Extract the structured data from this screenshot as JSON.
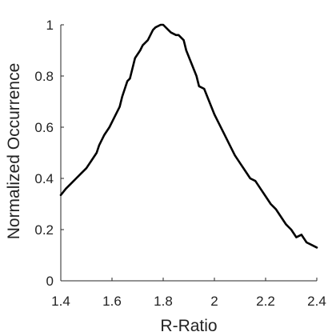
{
  "chart_data": {
    "type": "line",
    "title": "",
    "xlabel": "R-Ratio",
    "ylabel": "Normalized Occurrence",
    "xlim": [
      1.4,
      2.4
    ],
    "ylim": [
      0,
      1
    ],
    "xticks": [
      "1.4",
      "1.6",
      "1.8",
      "2",
      "2.2",
      "2.4"
    ],
    "yticks": [
      "0",
      "0.2",
      "0.4",
      "0.6",
      "0.8",
      "1"
    ],
    "grid": false,
    "line_color": "#000000",
    "series": [
      {
        "x": [
          1.4,
          1.42,
          1.44,
          1.46,
          1.48,
          1.5,
          1.52,
          1.54,
          1.55,
          1.57,
          1.59,
          1.61,
          1.63,
          1.64,
          1.66,
          1.67,
          1.69,
          1.71,
          1.72,
          1.74,
          1.76,
          1.77,
          1.79,
          1.8,
          1.82,
          1.83,
          1.85,
          1.86,
          1.88,
          1.89,
          1.91,
          1.93,
          1.94,
          1.96,
          1.98,
          2.0,
          2.02,
          2.04,
          2.06,
          2.08,
          2.1,
          2.12,
          2.14,
          2.16,
          2.18,
          2.2,
          2.22,
          2.24,
          2.26,
          2.28,
          2.3,
          2.32,
          2.34,
          2.36,
          2.38,
          2.4
        ],
        "y": [
          0.335,
          0.36,
          0.38,
          0.4,
          0.42,
          0.44,
          0.47,
          0.5,
          0.53,
          0.57,
          0.6,
          0.64,
          0.68,
          0.72,
          0.78,
          0.79,
          0.87,
          0.9,
          0.92,
          0.94,
          0.98,
          0.99,
          1.0,
          1.0,
          0.98,
          0.97,
          0.96,
          0.96,
          0.94,
          0.9,
          0.85,
          0.8,
          0.76,
          0.75,
          0.7,
          0.65,
          0.61,
          0.57,
          0.53,
          0.49,
          0.46,
          0.43,
          0.4,
          0.39,
          0.36,
          0.33,
          0.3,
          0.28,
          0.25,
          0.22,
          0.2,
          0.17,
          0.18,
          0.15,
          0.14,
          0.13
        ]
      }
    ]
  }
}
